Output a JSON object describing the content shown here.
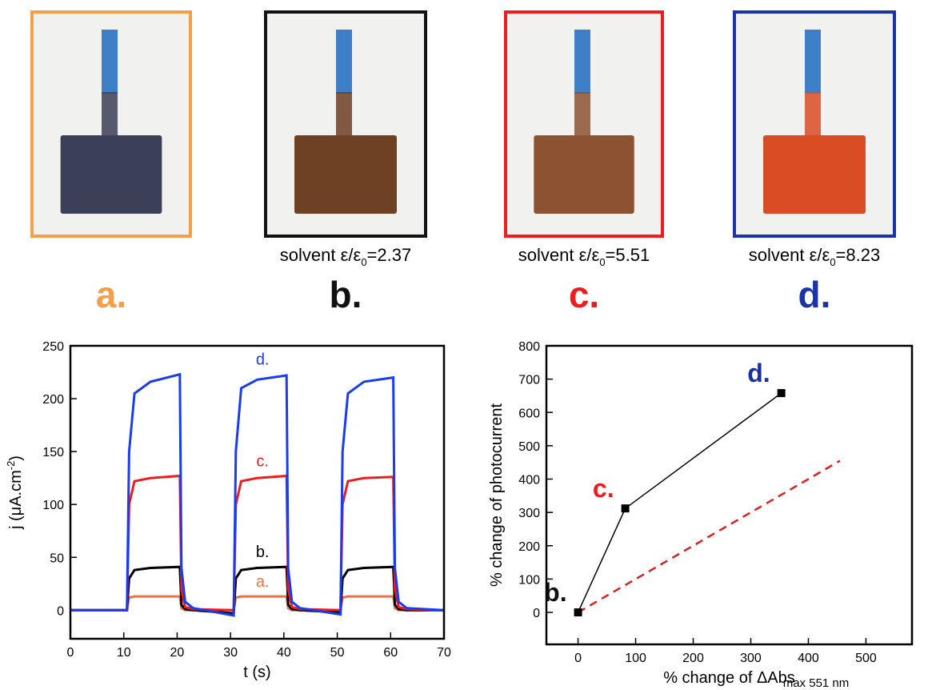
{
  "panels": [
    {
      "label": "a.",
      "color": "#f4a04a",
      "photo": "#3c3f58"
    },
    {
      "label": "b.",
      "color": "#111111",
      "photo": "#6e4024",
      "caption": [
        "solvent ε/ε",
        "0",
        "=2.37"
      ]
    },
    {
      "label": "c.",
      "color": "#ee1c1c",
      "photo": "#8c5232",
      "caption": [
        "solvent ε/ε",
        "0",
        "=5.51"
      ]
    },
    {
      "label": "d.",
      "color": "#1a33a8",
      "photo": "#d94c24",
      "caption": [
        "solvent ε/ε",
        "0",
        "=8.23"
      ]
    }
  ],
  "chart_data": [
    {
      "type": "line",
      "xlabel": "t (s)",
      "ylabel": [
        "j  (μA.cm",
        "-2",
        ")"
      ],
      "x": [
        0,
        10.6,
        11,
        12,
        15,
        20.5,
        20.8,
        21.5,
        23,
        30.6,
        31,
        32,
        35,
        40.5,
        40.8,
        41.5,
        43,
        50.6,
        51,
        52,
        55,
        60.5,
        60.8,
        61.5,
        63,
        70
      ],
      "series": [
        {
          "name": "a.",
          "color": "#e8704a",
          "values": [
            0,
            0,
            12,
            13,
            13,
            13,
            2,
            0,
            0,
            0,
            12,
            13,
            13,
            13,
            2,
            0,
            0,
            0,
            12,
            13,
            13,
            13,
            2,
            0,
            0,
            0
          ]
        },
        {
          "name": "b.",
          "color": "#000000",
          "values": [
            0,
            0,
            30,
            38,
            40,
            41,
            5,
            1,
            0,
            -3,
            30,
            38,
            40,
            41,
            5,
            1,
            0,
            -2,
            30,
            38,
            40,
            41,
            5,
            1,
            0,
            0
          ]
        },
        {
          "name": "c.",
          "color": "#ee1c1c",
          "values": [
            0,
            0,
            100,
            122,
            125,
            127,
            20,
            3,
            1,
            0,
            100,
            122,
            125,
            127,
            20,
            3,
            1,
            0,
            100,
            122,
            125,
            126,
            20,
            3,
            1,
            0
          ]
        },
        {
          "name": "d.",
          "color": "#1a3cf0",
          "values": [
            0,
            0,
            150,
            205,
            216,
            223,
            40,
            8,
            2,
            -5,
            150,
            210,
            218,
            222,
            40,
            8,
            2,
            -4,
            150,
            205,
            216,
            220,
            40,
            8,
            2,
            0
          ]
        }
      ],
      "xlim": [
        0,
        70
      ],
      "xticks": [
        0,
        10,
        20,
        30,
        40,
        50,
        60,
        70
      ],
      "ylim": [
        -27,
        250
      ],
      "yticks": [
        0,
        50,
        100,
        150,
        200,
        250
      ]
    },
    {
      "type": "line",
      "xlabel": "% change of ΔAbs",
      "xlabel_note": "max 551 nm",
      "ylabel": "% change of photocurrent",
      "x": [
        0,
        82,
        353
      ],
      "series": [
        {
          "color": "#000000",
          "values": [
            0,
            312,
            658
          ],
          "point_labels": [
            "b.",
            "c.",
            "d."
          ],
          "point_label_colors": [
            "#111111",
            "#ee1c1c",
            "#1a2fa0"
          ]
        }
      ],
      "reference": {
        "x": [
          0,
          455
        ],
        "values": [
          0,
          455
        ],
        "color": "#e02020",
        "dashed": true
      },
      "xlim": [
        -55,
        580
      ],
      "xticks": [
        0,
        100,
        200,
        300,
        400,
        500
      ],
      "ylim": [
        -96,
        800
      ],
      "yticks": [
        0,
        100,
        200,
        300,
        400,
        500,
        600,
        700,
        800
      ]
    }
  ]
}
